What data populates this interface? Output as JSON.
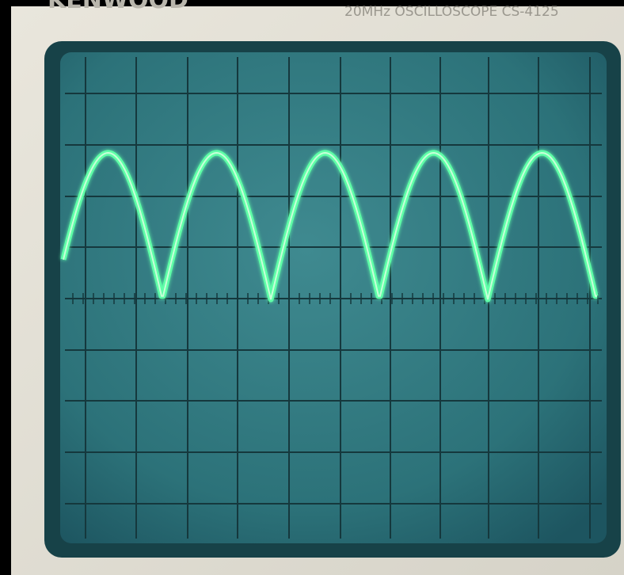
{
  "header": {
    "brand": "KENWOOD",
    "model": "20MHz OSCILLOSCOPE CS-4125"
  }
}
